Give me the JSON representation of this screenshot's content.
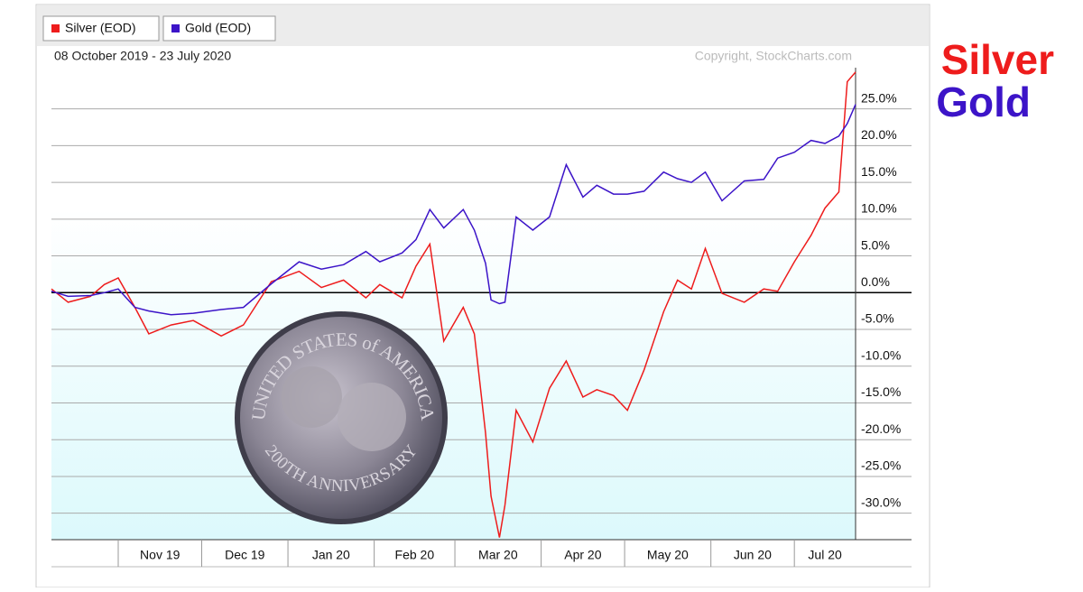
{
  "chart_data": {
    "type": "line",
    "subtitle": "08 October 2019 - 23 July 2020",
    "source": "Copyright, StockCharts.com",
    "labels": [
      "Silver",
      "Gold"
    ],
    "annotations": [
      "UNITED STATES of AMERICA",
      "200TH ANNIVERSARY"
    ],
    "xlim": [
      "2019-10-08",
      "2020-07-23"
    ],
    "xticks": [
      {
        "value": "2019-11-01",
        "label": "Nov 19"
      },
      {
        "value": "2019-12-01",
        "label": "Dec 19"
      },
      {
        "value": "2020-01-01",
        "label": "Jan 20"
      },
      {
        "value": "2020-02-01",
        "label": "Feb 20"
      },
      {
        "value": "2020-03-01",
        "label": "Mar 20"
      },
      {
        "value": "2020-04-01",
        "label": "Apr 20"
      },
      {
        "value": "2020-05-01",
        "label": "May 20"
      },
      {
        "value": "2020-06-01",
        "label": "Jun 20"
      },
      {
        "value": "2020-07-01",
        "label": "Jul 20"
      }
    ],
    "ylim": [
      -33.6,
      30.6
    ],
    "yticks": [
      {
        "value": 25,
        "label": "25.0%"
      },
      {
        "value": 20,
        "label": "20.0%"
      },
      {
        "value": 15,
        "label": "15.0%"
      },
      {
        "value": 10,
        "label": "10.0%"
      },
      {
        "value": 5,
        "label": "5.0%"
      },
      {
        "value": 0,
        "label": "0.0%"
      },
      {
        "value": -5,
        "label": "-5.0%"
      },
      {
        "value": -10,
        "label": "-10.0%"
      },
      {
        "value": -15,
        "label": "-15.0%"
      },
      {
        "value": -20,
        "label": "-20.0%"
      },
      {
        "value": -25,
        "label": "-25.0%"
      },
      {
        "value": -30,
        "label": "-30.0%"
      }
    ],
    "grid": true,
    "x": [
      "2019-10-08",
      "2019-10-14",
      "2019-10-22",
      "2019-10-27",
      "2019-11-01",
      "2019-11-07",
      "2019-11-12",
      "2019-11-20",
      "2019-11-28",
      "2019-12-08",
      "2019-12-16",
      "2019-12-26",
      "2020-01-05",
      "2020-01-13",
      "2020-01-21",
      "2020-01-29",
      "2020-02-03",
      "2020-02-11",
      "2020-02-16",
      "2020-02-21",
      "2020-02-26",
      "2020-03-04",
      "2020-03-08",
      "2020-03-12",
      "2020-03-14",
      "2020-03-17",
      "2020-03-19",
      "2020-03-23",
      "2020-03-29",
      "2020-04-04",
      "2020-04-10",
      "2020-04-16",
      "2020-04-21",
      "2020-04-27",
      "2020-05-02",
      "2020-05-08",
      "2020-05-15",
      "2020-05-20",
      "2020-05-25",
      "2020-05-30",
      "2020-06-05",
      "2020-06-13",
      "2020-06-20",
      "2020-06-25",
      "2020-07-01",
      "2020-07-07",
      "2020-07-12",
      "2020-07-17",
      "2020-07-20",
      "2020-07-23"
    ],
    "series": [
      {
        "name": "Silver (EOD)",
        "color": "#ee1c1c",
        "values": [
          0.5,
          -1.3,
          -0.5,
          1.1,
          2,
          -2,
          -5.6,
          -4.4,
          -3.8,
          -5.9,
          -4.4,
          1.5,
          2.9,
          0.7,
          1.7,
          -0.7,
          1.1,
          -0.7,
          3.6,
          6.6,
          -6.6,
          -2,
          -5.6,
          -19.1,
          -27.7,
          -33.3,
          -28.9,
          -16,
          -20.3,
          -13,
          -9.3,
          -14.2,
          -13.2,
          -14,
          -16,
          -10.5,
          -2.6,
          1.7,
          0.5,
          6,
          -0.1,
          -1.3,
          0.5,
          0.2,
          4.2,
          7.8,
          11.5,
          13.7,
          28.7,
          30
        ]
      },
      {
        "name": "Gold (EOD)",
        "color": "#3c14c8",
        "values": [
          0.2,
          -0.5,
          -0.4,
          0,
          0.5,
          -2,
          -2.5,
          -3,
          -2.8,
          -2.3,
          -2,
          1.2,
          4.2,
          3.2,
          3.8,
          5.6,
          4.2,
          5.4,
          7.2,
          11.3,
          8.8,
          11.3,
          8.5,
          4,
          -1,
          -1.5,
          -1.3,
          10.3,
          8.5,
          10.3,
          17.4,
          13,
          14.6,
          13.4,
          13.4,
          13.8,
          16.4,
          15.5,
          15,
          16.4,
          12.5,
          15.2,
          15.4,
          18.3,
          19.1,
          20.7,
          20.3,
          21.3,
          23,
          25.6
        ]
      }
    ]
  }
}
